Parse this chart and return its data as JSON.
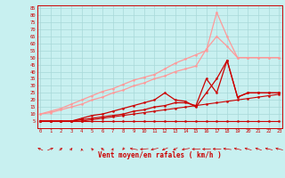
{
  "bg_color": "#c8f0f0",
  "grid_color": "#a8d8d8",
  "xlabel": "Vent moyen/en rafales ( km/h )",
  "y_ticks": [
    5,
    10,
    15,
    20,
    25,
    30,
    35,
    40,
    45,
    50,
    55,
    60,
    65,
    70,
    75,
    80,
    85
  ],
  "x_ticks": [
    0,
    1,
    2,
    3,
    4,
    5,
    6,
    7,
    8,
    9,
    10,
    11,
    12,
    13,
    14,
    15,
    16,
    17,
    18,
    19,
    20,
    21,
    22,
    23
  ],
  "xlim": [
    -0.3,
    23.3
  ],
  "ylim": [
    0,
    87
  ],
  "series": [
    {
      "x": [
        0,
        1,
        2,
        3,
        4,
        5,
        6,
        7,
        8,
        9,
        10,
        11,
        12,
        13,
        14,
        15,
        16,
        17,
        18,
        19,
        20,
        21,
        22,
        23
      ],
      "y": [
        5,
        5,
        5,
        5,
        5,
        5,
        5,
        5,
        5,
        5,
        5,
        5,
        5,
        5,
        5,
        5,
        5,
        5,
        5,
        5,
        5,
        5,
        5,
        5
      ],
      "color": "#cc0000",
      "lw": 0.8,
      "marker": true
    },
    {
      "x": [
        0,
        1,
        2,
        3,
        4,
        5,
        6,
        7,
        8,
        9,
        10,
        11,
        12,
        13,
        14,
        15,
        16,
        17,
        18,
        19,
        20,
        21,
        22,
        23
      ],
      "y": [
        5,
        5,
        5,
        5,
        5,
        6,
        7,
        8,
        9,
        10,
        11,
        12,
        13,
        14,
        15,
        16,
        17,
        18,
        19,
        20,
        21,
        22,
        23,
        24
      ],
      "color": "#cc0000",
      "lw": 0.8,
      "marker": true
    },
    {
      "x": [
        0,
        1,
        2,
        3,
        4,
        5,
        6,
        7,
        8,
        9,
        10,
        11,
        12,
        13,
        14,
        15,
        16,
        17,
        18,
        19,
        20,
        21,
        22,
        23
      ],
      "y": [
        5,
        5,
        5,
        5,
        6,
        7,
        8,
        9,
        10,
        12,
        13,
        15,
        16,
        18,
        18,
        16,
        35,
        25,
        48,
        22,
        25,
        25,
        25,
        25
      ],
      "color": "#cc0000",
      "lw": 0.9,
      "marker": true
    },
    {
      "x": [
        0,
        1,
        2,
        3,
        4,
        5,
        6,
        7,
        8,
        9,
        10,
        11,
        12,
        13,
        14,
        15,
        16,
        17,
        18,
        19,
        20,
        21,
        22,
        23
      ],
      "y": [
        5,
        5,
        5,
        5,
        7,
        9,
        10,
        12,
        14,
        16,
        18,
        20,
        25,
        20,
        19,
        15,
        25,
        35,
        48,
        22,
        25,
        25,
        25,
        25
      ],
      "color": "#cc0000",
      "lw": 0.9,
      "marker": true
    },
    {
      "x": [
        0,
        1,
        2,
        3,
        4,
        5,
        6,
        7,
        8,
        9,
        10,
        11,
        12,
        13,
        14,
        15,
        16,
        17,
        18,
        19,
        20,
        21,
        22,
        23
      ],
      "y": [
        10,
        11,
        13,
        15,
        17,
        20,
        22,
        25,
        27,
        30,
        32,
        35,
        37,
        40,
        42,
        44,
        56,
        65,
        58,
        50,
        50,
        50,
        50,
        50
      ],
      "color": "#ff9999",
      "lw": 0.9,
      "marker": true
    },
    {
      "x": [
        0,
        1,
        2,
        3,
        4,
        5,
        6,
        7,
        8,
        9,
        10,
        11,
        12,
        13,
        14,
        15,
        16,
        17,
        18,
        19,
        20,
        21,
        22,
        23
      ],
      "y": [
        10,
        12,
        14,
        17,
        20,
        23,
        26,
        28,
        31,
        34,
        36,
        38,
        42,
        46,
        49,
        52,
        55,
        82,
        65,
        50,
        50,
        50,
        50,
        50
      ],
      "color": "#ff9999",
      "lw": 0.9,
      "marker": true
    }
  ],
  "wind_angles": [
    315,
    50,
    30,
    25,
    355,
    340,
    330,
    15,
    200,
    290,
    260,
    245,
    230,
    220,
    250,
    265,
    265,
    275,
    285,
    295,
    300,
    305,
    295,
    295
  ]
}
